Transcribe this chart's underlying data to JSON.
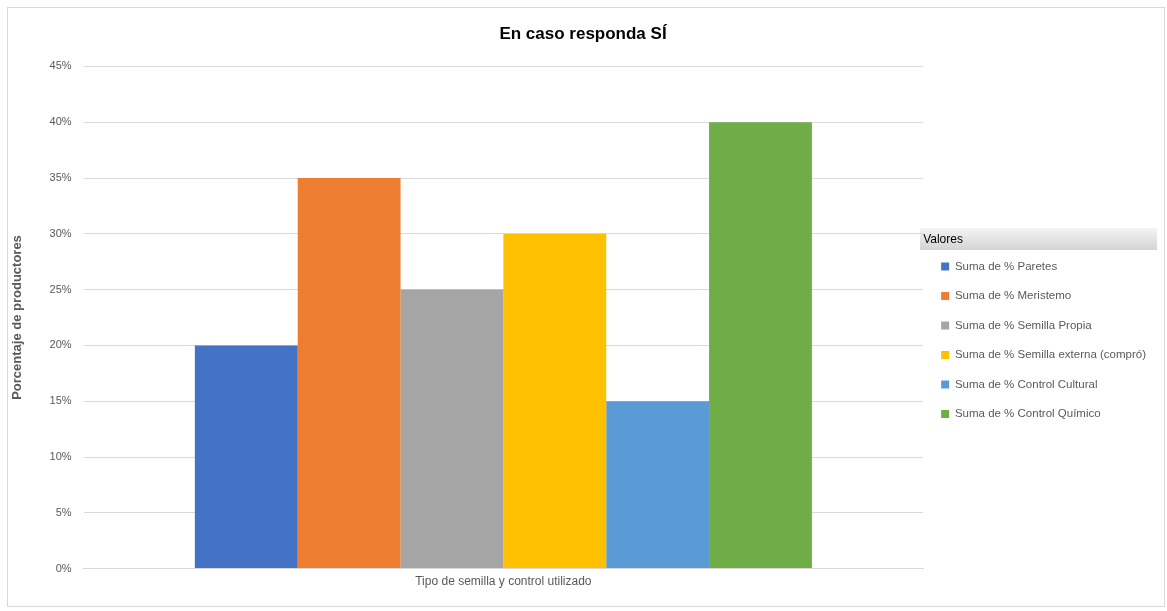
{
  "chart_data": {
    "type": "bar",
    "title": "En caso responda SÍ",
    "ylabel": "Porcentaje de productores",
    "legend_title": "Valores",
    "categories": [
      "Tipo de semilla y control utilizado"
    ],
    "series": [
      {
        "name": "Suma de % Paretes",
        "color": "#4472c4",
        "values": [
          20
        ]
      },
      {
        "name": "Suma de % Meristemo",
        "color": "#ed7d31",
        "values": [
          35
        ]
      },
      {
        "name": "Suma de % Semilla Propia",
        "color": "#a5a5a5",
        "values": [
          25
        ]
      },
      {
        "name": "Suma de % Semilla externa (compró)",
        "color": "#ffc000",
        "values": [
          30
        ]
      },
      {
        "name": "Suma de % Control Cultural",
        "color": "#5b9bd5",
        "values": [
          15
        ]
      },
      {
        "name": "Suma de % Control Químico",
        "color": "#70ad47",
        "values": [
          40
        ]
      }
    ],
    "ylim": [
      0,
      45
    ],
    "yticks": [
      {
        "value": 0,
        "label": "0%"
      },
      {
        "value": 5,
        "label": "5%"
      },
      {
        "value": 10,
        "label": "10%"
      },
      {
        "value": 15,
        "label": "15%"
      },
      {
        "value": 20,
        "label": "20%"
      },
      {
        "value": 25,
        "label": "25%"
      },
      {
        "value": 30,
        "label": "30%"
      },
      {
        "value": 35,
        "label": "35%"
      },
      {
        "value": 40,
        "label": "40%"
      },
      {
        "value": 45,
        "label": "45%"
      }
    ],
    "grid": "y",
    "legend": "right"
  }
}
